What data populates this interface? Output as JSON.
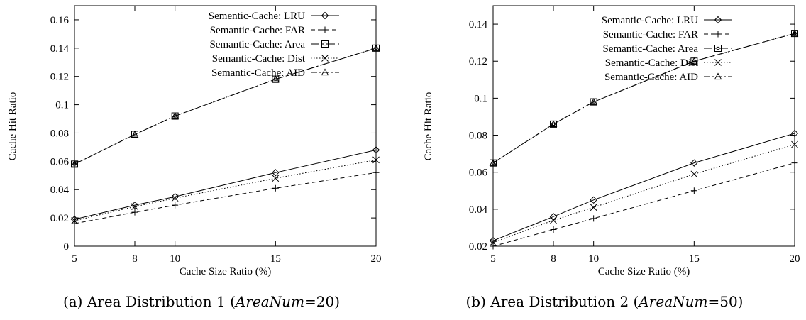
{
  "chart_data": [
    {
      "type": "line",
      "caption": {
        "prefix": "(a) Area Distribution 1 (",
        "var": "AreaNum",
        "suffix": "=20)"
      },
      "xlabel": "Cache Size Ratio (%)",
      "ylabel": "Cache Hit Ratio",
      "x": [
        5,
        8,
        10,
        15,
        20
      ],
      "xticks": [
        "5",
        "8",
        "10",
        "15",
        "20"
      ],
      "xlim": [
        5,
        20
      ],
      "ylim": [
        0,
        0.17
      ],
      "yticks": [
        "0",
        "0.02",
        "0.04",
        "0.06",
        "0.08",
        "0.1",
        "0.12",
        "0.14",
        "0.16"
      ],
      "legend_position": "top-left",
      "grid": false,
      "series": [
        {
          "name": "Sementic-Cache: LRU",
          "marker": "diamond",
          "dash": "solid",
          "values": [
            0.019,
            0.029,
            0.035,
            0.052,
            0.068
          ]
        },
        {
          "name": "Semantic-Cache: FAR",
          "marker": "plus",
          "dash": "dashed",
          "values": [
            0.016,
            0.024,
            0.029,
            0.041,
            0.052
          ]
        },
        {
          "name": "Semantic-Cache: Area",
          "marker": "square",
          "dash": "dashdot",
          "values": [
            0.058,
            0.079,
            0.092,
            0.118,
            0.14
          ]
        },
        {
          "name": "Semantic-Cache: Dist",
          "marker": "cross",
          "dash": "dotted",
          "values": [
            0.018,
            0.028,
            0.034,
            0.048,
            0.061
          ]
        },
        {
          "name": "Semantic-Cache: AID",
          "marker": "triangle",
          "dash": "dashdot2",
          "values": [
            0.058,
            0.079,
            0.092,
            0.118,
            0.14
          ]
        }
      ]
    },
    {
      "type": "line",
      "caption": {
        "prefix": "(b) Area Distribution 2 (",
        "var": "AreaNum",
        "suffix": "=50)"
      },
      "xlabel": "Cache Size Ratio (%)",
      "ylabel": "Cache Hit Ratio",
      "x": [
        5,
        8,
        10,
        15,
        20
      ],
      "xticks": [
        "5",
        "8",
        "10",
        "15",
        "20"
      ],
      "xlim": [
        5,
        20
      ],
      "ylim": [
        0.02,
        0.15
      ],
      "yticks": [
        "0.02",
        "0.04",
        "0.06",
        "0.08",
        "0.1",
        "0.12",
        "0.14"
      ],
      "legend_position": "top-left",
      "grid": false,
      "series": [
        {
          "name": "Semantic-Cache: LRU",
          "marker": "diamond",
          "dash": "solid",
          "values": [
            0.023,
            0.036,
            0.045,
            0.065,
            0.081
          ]
        },
        {
          "name": "Semantic-Cache: FAR",
          "marker": "plus",
          "dash": "dashed",
          "values": [
            0.02,
            0.029,
            0.035,
            0.05,
            0.065
          ]
        },
        {
          "name": "Semantic-Cache: Area",
          "marker": "square",
          "dash": "dashdot",
          "values": [
            0.065,
            0.086,
            0.098,
            0.12,
            0.135
          ]
        },
        {
          "name": "Semantic-Cache: Dist",
          "marker": "cross",
          "dash": "dotted",
          "values": [
            0.022,
            0.034,
            0.041,
            0.059,
            0.075
          ]
        },
        {
          "name": "Semantic-Cache: AID",
          "marker": "triangle",
          "dash": "dashdot2",
          "values": [
            0.065,
            0.086,
            0.098,
            0.12,
            0.135
          ]
        }
      ]
    }
  ]
}
